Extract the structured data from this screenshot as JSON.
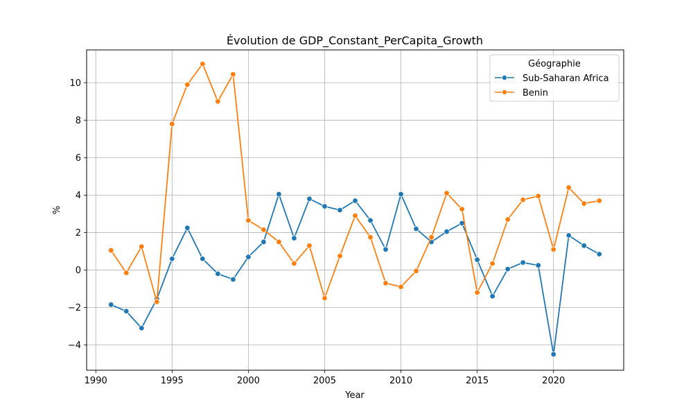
{
  "chart_data": {
    "type": "line",
    "title": "Évolution de GDP_Constant_PerCapita_Growth",
    "xlabel": "Year",
    "ylabel": "%",
    "xlim": [
      1989.4,
      2024.6
    ],
    "ylim": [
      -5.35,
      11.75
    ],
    "xticks": [
      1990,
      1995,
      2000,
      2005,
      2010,
      2015,
      2020
    ],
    "yticks": [
      -4,
      -2,
      0,
      2,
      4,
      6,
      8,
      10
    ],
    "grid": true,
    "legend": {
      "title": "Géographie",
      "position": "top-right"
    },
    "x": [
      1991,
      1992,
      1993,
      1994,
      1995,
      1996,
      1997,
      1998,
      1999,
      2000,
      2001,
      2002,
      2003,
      2004,
      2005,
      2006,
      2007,
      2008,
      2009,
      2010,
      2011,
      2012,
      2013,
      2014,
      2015,
      2016,
      2017,
      2018,
      2019,
      2020,
      2021,
      2022,
      2023
    ],
    "series": [
      {
        "name": "Sub-Saharan Africa",
        "color": "#1f77b4",
        "values": [
          -1.85,
          -2.2,
          -3.1,
          -1.55,
          0.6,
          2.25,
          0.6,
          -0.2,
          -0.5,
          0.7,
          1.5,
          4.05,
          1.7,
          3.8,
          3.4,
          3.2,
          3.7,
          2.65,
          1.1,
          4.05,
          2.2,
          1.5,
          2.05,
          2.5,
          0.55,
          -1.4,
          0.05,
          0.4,
          0.25,
          -4.5,
          1.85,
          1.3,
          0.85
        ]
      },
      {
        "name": "Benin",
        "color": "#ff7f0e",
        "values": [
          1.05,
          -0.15,
          1.25,
          -1.7,
          7.8,
          9.9,
          11.0,
          9.0,
          10.45,
          2.65,
          2.15,
          1.5,
          0.35,
          1.3,
          -1.5,
          0.75,
          2.9,
          1.75,
          -0.7,
          -0.9,
          -0.05,
          1.75,
          4.1,
          3.25,
          -1.2,
          0.35,
          2.7,
          3.75,
          3.95,
          1.1,
          4.4,
          3.55,
          3.7
        ]
      }
    ]
  }
}
